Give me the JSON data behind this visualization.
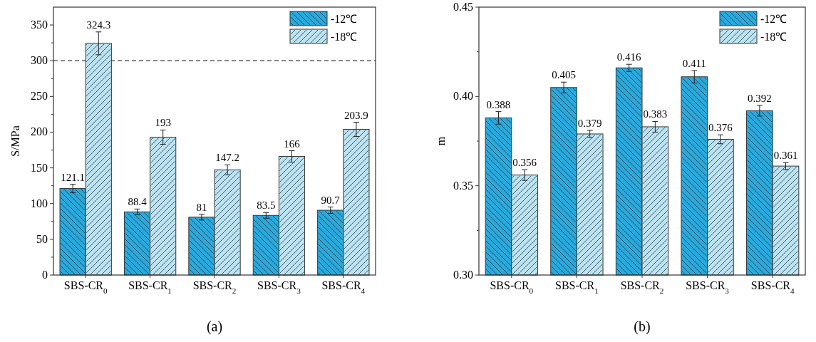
{
  "chart_data": [
    {
      "type": "bar",
      "ylabel": "S/MPa",
      "categories": [
        "SBS-CR$_{0}$",
        "SBS-CR$_{1}$",
        "SBS-CR$_{2}$",
        "SBS-CR$_{3}$",
        "SBS-CR$_{4}$"
      ],
      "series": [
        {
          "name": "-12℃",
          "color": "#29a9dc",
          "values": [
            121.1,
            88.4,
            81,
            83.5,
            90.7
          ],
          "errors": [
            6,
            4,
            4,
            4,
            4.5
          ]
        },
        {
          "name": "-18℃",
          "color": "#bde3f2",
          "values": [
            324.3,
            193,
            147.2,
            166,
            203.9
          ],
          "errors": [
            16,
            10,
            7,
            8,
            10
          ]
        }
      ],
      "ylim": [
        0,
        375
      ],
      "yticks": [
        0,
        {
          "value": 25,
          "label": null
        },
        50,
        {
          "value": 75,
          "label": null
        },
        100,
        {
          "value": 125,
          "label": null
        },
        150,
        {
          "value": 175,
          "label": null
        },
        200,
        {
          "value": 225,
          "label": null
        },
        250,
        {
          "value": 275,
          "label": null
        },
        300,
        {
          "value": 325,
          "label": null
        },
        350
      ],
      "ref_lines": [
        {
          "axis": "y",
          "value": 300,
          "color": "#000000",
          "line_style": "dashed"
        }
      ],
      "data_labels": true,
      "legend": "top right",
      "grid": false,
      "annotations": [
        "(a)"
      ]
    },
    {
      "type": "bar",
      "ylabel": "m",
      "categories": [
        "SBS-CR$_{0}$",
        "SBS-CR$_{1}$",
        "SBS-CR$_{2}$",
        "SBS-CR$_{3}$",
        "SBS-CR$_{4}$"
      ],
      "series": [
        {
          "name": "-12℃",
          "color": "#29a9dc",
          "values": [
            0.388,
            0.405,
            0.416,
            0.411,
            0.392
          ],
          "errors": [
            0.0035,
            0.003,
            0.002,
            0.0035,
            0.003
          ]
        },
        {
          "name": "-18℃",
          "color": "#bde3f2",
          "values": [
            0.356,
            0.379,
            0.383,
            0.376,
            0.361
          ],
          "errors": [
            0.003,
            0.002,
            0.003,
            0.0025,
            0.002
          ]
        }
      ],
      "ylim": [
        0.3,
        0.45
      ],
      "yticks": [
        {
          "value": 0.3,
          "label": "0.30"
        },
        {
          "value": 0.325,
          "label": null
        },
        {
          "value": 0.35,
          "label": "0.35"
        },
        {
          "value": 0.375,
          "label": null
        },
        {
          "value": 0.4,
          "label": "0.40"
        },
        {
          "value": 0.425,
          "label": null
        },
        {
          "value": 0.45,
          "label": "0.45"
        }
      ],
      "data_labels": true,
      "legend": "top right",
      "grid": false,
      "annotations": [
        "(b)"
      ]
    }
  ]
}
